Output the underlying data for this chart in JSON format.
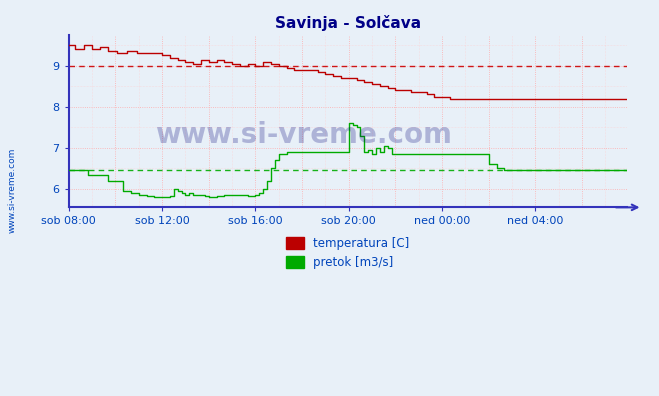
{
  "title": "Savinja - Solčava",
  "xlabel_ticks": [
    "sob 08:00",
    "sob 12:00",
    "sob 16:00",
    "sob 20:00",
    "ned 00:00",
    "ned 04:00"
  ],
  "xlabel_tick_pos": [
    0,
    48,
    96,
    144,
    192,
    240
  ],
  "yticks": [
    6,
    7,
    8,
    9
  ],
  "ylim": [
    5.55,
    9.75
  ],
  "xlim": [
    0,
    287
  ],
  "fig_bg_color": "#e8f0f8",
  "plot_bg_color": "#e8f0f8",
  "grid_major_color": "#ffaaaa",
  "grid_minor_color": "#ffcccc",
  "temp_color": "#bb0000",
  "pretok_color": "#00aa00",
  "avg_temp_color": "#cc0000",
  "avg_pretok_color": "#00aa00",
  "avg_temp_val": 9.0,
  "avg_pretok_val": 6.45,
  "watermark": "www.si-vreme.com",
  "legend_items": [
    "temperatura [C]",
    "pretok [m3/s]"
  ],
  "tick_label_color": "#0044bb",
  "title_color": "#000088",
  "axis_color": "#2222cc",
  "spine_color": "#3333bb",
  "watermark_color": "#000077"
}
